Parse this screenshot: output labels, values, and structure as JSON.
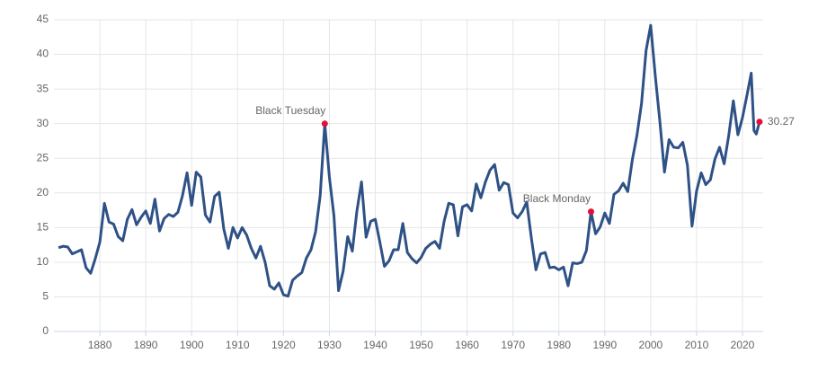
{
  "chart_data": {
    "type": "line",
    "x": [
      1871,
      1872,
      1873,
      1874,
      1875,
      1876,
      1877,
      1878,
      1879,
      1880,
      1881,
      1882,
      1883,
      1884,
      1885,
      1886,
      1887,
      1888,
      1889,
      1890,
      1891,
      1892,
      1893,
      1894,
      1895,
      1896,
      1897,
      1898,
      1899,
      1900,
      1901,
      1902,
      1903,
      1904,
      1905,
      1906,
      1907,
      1908,
      1909,
      1910,
      1911,
      1912,
      1913,
      1914,
      1915,
      1916,
      1917,
      1918,
      1919,
      1920,
      1921,
      1922,
      1923,
      1924,
      1925,
      1926,
      1927,
      1928,
      1929,
      1930,
      1931,
      1932,
      1933,
      1934,
      1935,
      1936,
      1937,
      1938,
      1939,
      1940,
      1941,
      1942,
      1943,
      1944,
      1945,
      1946,
      1947,
      1948,
      1949,
      1950,
      1951,
      1952,
      1953,
      1954,
      1955,
      1956,
      1957,
      1958,
      1959,
      1960,
      1961,
      1962,
      1963,
      1964,
      1965,
      1966,
      1967,
      1968,
      1969,
      1970,
      1971,
      1972,
      1973,
      1974,
      1975,
      1976,
      1977,
      1978,
      1979,
      1980,
      1981,
      1982,
      1983,
      1984,
      1985,
      1986,
      1987,
      1988,
      1989,
      1990,
      1991,
      1992,
      1993,
      1994,
      1995,
      1996,
      1997,
      1998,
      1999,
      2000,
      2001,
      2002,
      2003,
      2004,
      2005,
      2006,
      2007,
      2008,
      2009,
      2010,
      2011,
      2012,
      2013,
      2014,
      2015,
      2016,
      2017,
      2018,
      2019,
      2020,
      2021,
      2021.9,
      2022.5,
      2023,
      2023.7
    ],
    "series": [
      {
        "color": "#2e5186",
        "values": [
          12.1,
          12.3,
          12.2,
          11.2,
          11.5,
          11.8,
          9.2,
          8.4,
          10.5,
          12.9,
          18.5,
          15.8,
          15.5,
          13.7,
          13.1,
          16.2,
          17.6,
          15.4,
          16.5,
          17.4,
          15.6,
          19.1,
          14.5,
          16.3,
          16.9,
          16.6,
          17.2,
          19.6,
          22.9,
          18.2,
          23.0,
          22.3,
          16.8,
          15.8,
          19.5,
          20.1,
          14.8,
          12.0,
          15.0,
          13.5,
          15.0,
          13.9,
          12.0,
          10.6,
          12.3,
          10.0,
          6.6,
          6.1,
          7.0,
          5.3,
          5.1,
          7.4,
          8.0,
          8.5,
          10.6,
          11.8,
          14.4,
          19.6,
          30.0,
          22.3,
          16.7,
          5.9,
          8.7,
          13.7,
          11.6,
          17.4,
          21.6,
          13.6,
          15.9,
          16.2,
          12.9,
          9.4,
          10.2,
          11.8,
          11.8,
          15.6,
          11.4,
          10.5,
          9.9,
          10.7,
          12.0,
          12.6,
          13.0,
          12.0,
          15.9,
          18.5,
          18.3,
          13.8,
          18.0,
          18.3,
          17.4,
          21.3,
          19.3,
          21.6,
          23.3,
          24.1,
          20.4,
          21.5,
          21.2,
          17.1,
          16.4,
          17.3,
          18.7,
          13.5,
          8.9,
          11.2,
          11.4,
          9.2,
          9.3,
          8.9,
          9.3,
          6.6,
          9.9,
          9.8,
          10.0,
          11.7,
          17.3,
          14.1,
          15.1,
          17.1,
          15.6,
          19.8,
          20.3,
          21.4,
          20.2,
          24.8,
          28.3,
          32.9,
          40.6,
          44.2,
          36.9,
          30.3,
          23.0,
          27.7,
          26.6,
          26.5,
          27.3,
          24.0,
          15.2,
          20.3,
          22.9,
          21.2,
          21.9,
          24.9,
          26.6,
          24.2,
          28.3,
          33.3,
          28.4,
          30.9,
          34.2,
          37.3,
          29.0,
          28.5,
          30.27
        ]
      }
    ],
    "annotations": [
      {
        "label": "Black Tuesday",
        "x": 1929,
        "y": 30.0
      },
      {
        "label": "Black Monday",
        "x": 1987,
        "y": 17.3
      },
      {
        "label": "30.27",
        "x": 2023.7,
        "y": 30.27
      }
    ],
    "xlim": [
      1870,
      2024.5
    ],
    "ylim": [
      0,
      45
    ],
    "xticks": [
      1880,
      1890,
      1900,
      1910,
      1920,
      1930,
      1940,
      1950,
      1960,
      1970,
      1980,
      1990,
      2000,
      2010,
      2020
    ],
    "yticks": [
      0,
      5,
      10,
      15,
      20,
      25,
      30,
      35,
      40,
      45
    ],
    "grid": true,
    "marker_color": "#e0103a"
  }
}
